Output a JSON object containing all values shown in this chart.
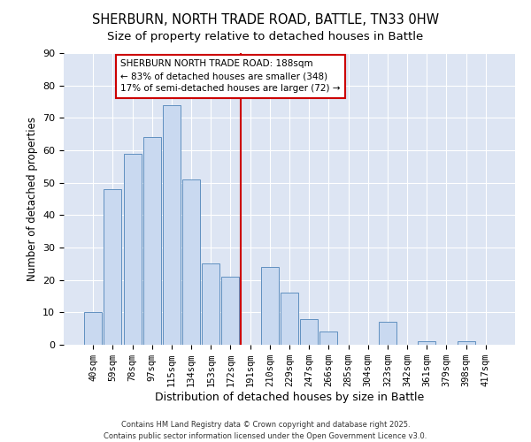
{
  "title": "SHERBURN, NORTH TRADE ROAD, BATTLE, TN33 0HW",
  "subtitle": "Size of property relative to detached houses in Battle",
  "xlabel": "Distribution of detached houses by size in Battle",
  "ylabel": "Number of detached properties",
  "categories": [
    "40sqm",
    "59sqm",
    "78sqm",
    "97sqm",
    "115sqm",
    "134sqm",
    "153sqm",
    "172sqm",
    "191sqm",
    "210sqm",
    "229sqm",
    "247sqm",
    "266sqm",
    "285sqm",
    "304sqm",
    "323sqm",
    "342sqm",
    "361sqm",
    "379sqm",
    "398sqm",
    "417sqm"
  ],
  "values": [
    10,
    48,
    59,
    64,
    74,
    51,
    25,
    21,
    0,
    24,
    16,
    8,
    4,
    0,
    0,
    7,
    0,
    1,
    0,
    1,
    0
  ],
  "bar_color": "#c9d9f0",
  "bar_edge_color": "#6090c0",
  "vline_color": "#cc0000",
  "annotation_text": "SHERBURN NORTH TRADE ROAD: 188sqm\n← 83% of detached houses are smaller (348)\n17% of semi-detached houses are larger (72) →",
  "annotation_box_color": "#ffffff",
  "annotation_box_edge_color": "#cc0000",
  "ylim": [
    0,
    90
  ],
  "yticks": [
    0,
    10,
    20,
    30,
    40,
    50,
    60,
    70,
    80,
    90
  ],
  "bg_color": "#dde5f3",
  "grid_color": "#ffffff",
  "footer1": "Contains HM Land Registry data © Crown copyright and database right 2025.",
  "footer2": "Contains public sector information licensed under the Open Government Licence v3.0.",
  "title_fontsize": 10.5,
  "subtitle_fontsize": 9.5,
  "ylabel_text": "Number of detached properties"
}
